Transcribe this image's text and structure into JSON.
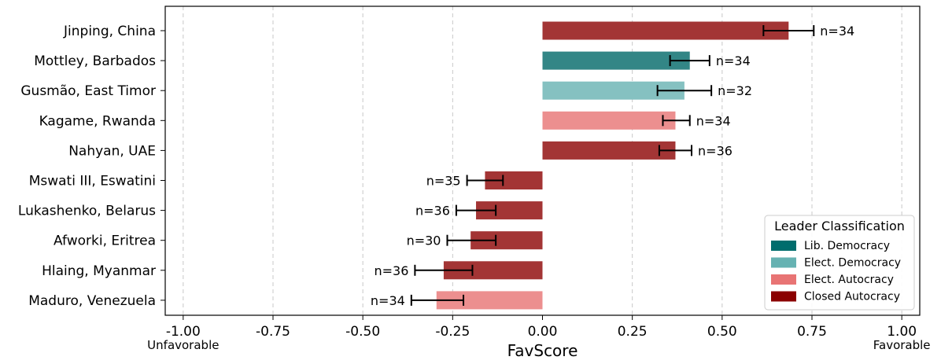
{
  "chart_data": {
    "type": "bar",
    "orientation": "horizontal",
    "xlabel": "FavScore",
    "xlim": [
      -1.05,
      1.05
    ],
    "xticks": [
      -1.0,
      -0.75,
      -0.5,
      -0.25,
      0.0,
      0.25,
      0.5,
      0.75,
      1.0
    ],
    "xtick_labels": [
      "-1.00",
      "-0.75",
      "-0.50",
      "-0.25",
      "0.00",
      "0.25",
      "0.50",
      "0.75",
      "1.00"
    ],
    "x_end_labels": {
      "left": "Unfavorable",
      "right": "Favorable"
    },
    "grid": "vertical dashed",
    "legend": {
      "title": "Leader Classification",
      "placement": "bottom-right",
      "entries": [
        {
          "label": "Lib. Democracy",
          "color": "#006d6d"
        },
        {
          "label": "Elect. Democracy",
          "color": "#66b2b2"
        },
        {
          "label": "Elect. Autocracy",
          "color": "#e87474"
        },
        {
          "label": "Closed Autocracy",
          "color": "#8b0000"
        }
      ]
    },
    "bars": [
      {
        "label": "Jinping, China",
        "value": 0.685,
        "err_low": 0.615,
        "err_high": 0.755,
        "n": "n=34",
        "class": "Closed Autocracy"
      },
      {
        "label": "Mottley, Barbados",
        "value": 0.41,
        "err_low": 0.355,
        "err_high": 0.465,
        "n": "n=34",
        "class": "Lib. Democracy"
      },
      {
        "label": "Gusmão, East Timor",
        "value": 0.395,
        "err_low": 0.32,
        "err_high": 0.47,
        "n": "n=32",
        "class": "Elect. Democracy"
      },
      {
        "label": "Kagame, Rwanda",
        "value": 0.37,
        "err_low": 0.335,
        "err_high": 0.41,
        "n": "n=34",
        "class": "Elect. Autocracy"
      },
      {
        "label": "Nahyan, UAE",
        "value": 0.37,
        "err_low": 0.325,
        "err_high": 0.415,
        "n": "n=36",
        "class": "Closed Autocracy"
      },
      {
        "label": "Mswati III, Eswatini",
        "value": -0.16,
        "err_low": -0.21,
        "err_high": -0.11,
        "n": "n=35",
        "class": "Closed Autocracy"
      },
      {
        "label": "Lukashenko, Belarus",
        "value": -0.185,
        "err_low": -0.24,
        "err_high": -0.13,
        "n": "n=36",
        "class": "Closed Autocracy"
      },
      {
        "label": "Afworki, Eritrea",
        "value": -0.2,
        "err_low": -0.265,
        "err_high": -0.13,
        "n": "n=30",
        "class": "Closed Autocracy"
      },
      {
        "label": "Hlaing, Myanmar",
        "value": -0.275,
        "err_low": -0.355,
        "err_high": -0.195,
        "n": "n=36",
        "class": "Closed Autocracy"
      },
      {
        "label": "Maduro, Venezuela",
        "value": -0.295,
        "err_low": -0.365,
        "err_high": -0.22,
        "n": "n=34",
        "class": "Elect. Autocracy"
      }
    ]
  }
}
